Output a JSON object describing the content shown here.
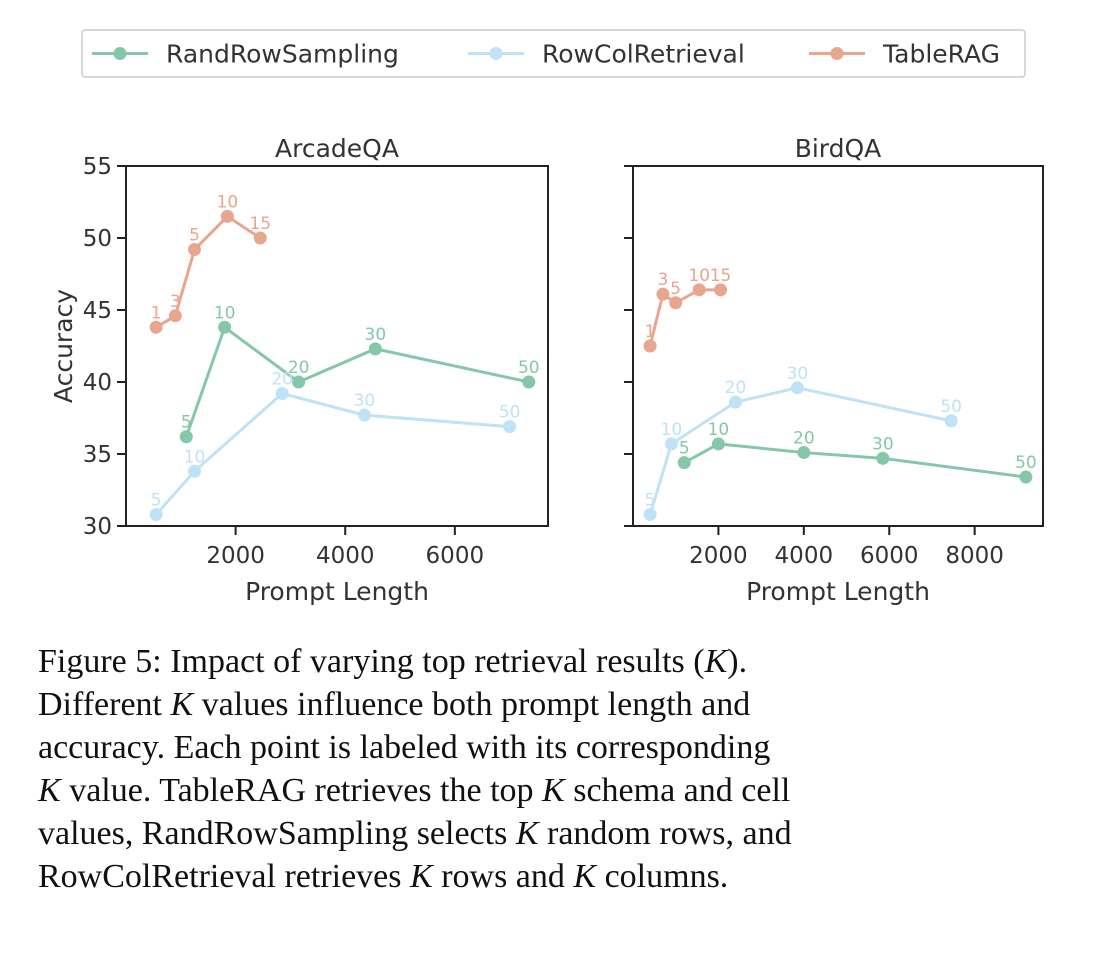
{
  "chart_data": {
    "type": "line",
    "legend": {
      "placement": "top",
      "entries": [
        {
          "name": "RandRowSampling",
          "color": "#86c7a9"
        },
        {
          "name": "RowColRetrieval",
          "color": "#bfe2f6"
        },
        {
          "name": "TableRAG",
          "color": "#e8a68e"
        }
      ]
    },
    "ylabel": "Accuracy",
    "ylim": [
      30,
      55
    ],
    "yticks": [
      30,
      35,
      40,
      45,
      50,
      55
    ],
    "panels": [
      {
        "title": "ArcadeQA",
        "xlabel": "Prompt Length",
        "xlim": [
          0,
          7700
        ],
        "xticks": [
          2000,
          4000,
          6000
        ],
        "series": [
          {
            "name": "RandRowSampling",
            "color": "#86c7a9",
            "x": [
              1100,
              1800,
              3150,
              4550,
              7350
            ],
            "y": [
              36.2,
              43.8,
              40.0,
              42.3,
              40.0
            ],
            "labels": [
              "5",
              "10",
              "20",
              "30",
              "50"
            ]
          },
          {
            "name": "RowColRetrieval",
            "color": "#bfe2f6",
            "x": [
              550,
              1250,
              2850,
              4350,
              7000
            ],
            "y": [
              30.8,
              33.8,
              39.2,
              37.7,
              36.9
            ],
            "labels": [
              "5",
              "10",
              "20",
              "30",
              "50"
            ]
          },
          {
            "name": "TableRAG",
            "color": "#e8a68e",
            "x": [
              550,
              900,
              1250,
              1850,
              2450
            ],
            "y": [
              43.8,
              44.6,
              49.2,
              51.5,
              50.0
            ],
            "labels": [
              "1",
              "3",
              "5",
              "10",
              "15"
            ]
          }
        ]
      },
      {
        "title": "BirdQA",
        "xlabel": "",
        "xlim": [
          0,
          9600
        ],
        "xticks": [
          2000,
          4000,
          6000,
          8000
        ],
        "series": [
          {
            "name": "RandRowSampling",
            "color": "#86c7a9",
            "x": [
              1200,
              2000,
              4000,
              5850,
              9200
            ],
            "y": [
              34.4,
              35.7,
              35.1,
              34.7,
              33.4
            ],
            "labels": [
              "5",
              "10",
              "20",
              "30",
              "50"
            ]
          },
          {
            "name": "RowColRetrieval",
            "color": "#bfe2f6",
            "x": [
              400,
              900,
              2400,
              3850,
              7450
            ],
            "y": [
              30.8,
              35.7,
              38.6,
              39.6,
              37.3
            ],
            "labels": [
              "5",
              "10",
              "20",
              "30",
              "50"
            ]
          },
          {
            "name": "TableRAG",
            "color": "#e8a68e",
            "x": [
              400,
              700,
              1000,
              1550,
              2050
            ],
            "y": [
              42.5,
              46.1,
              45.5,
              46.4,
              46.4
            ],
            "labels": [
              "1",
              "3",
              "5",
              "10",
              "15"
            ]
          }
        ]
      }
    ]
  },
  "caption": {
    "lines": [
      "Figure 5:  Impact of varying top retrieval results (<i>K</i>).",
      "Different <i>K</i> values influence both prompt length and",
      "accuracy. Each point is labeled with its corresponding",
      "<i>K</i> value. TableRAG retrieves the top <i>K</i> schema and cell",
      "values, RandRowSampling selects <i>K</i> random rows, and",
      "RowColRetrieval retrieves <i>K</i> rows and <i>K</i> columns."
    ]
  }
}
